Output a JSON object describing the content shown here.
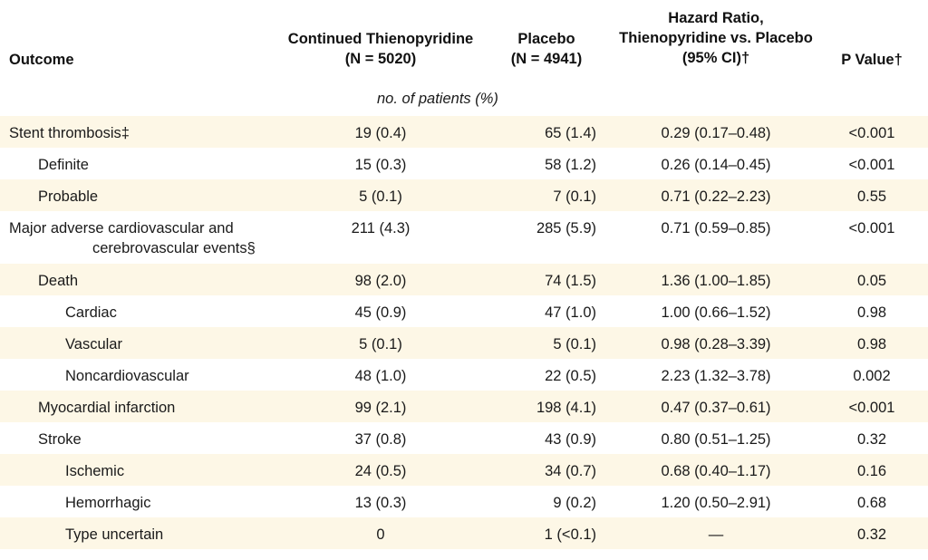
{
  "header": {
    "outcome": "Outcome",
    "continued": "Continued Thienopyridine\n(N = 5020)",
    "placebo": "Placebo\n(N = 4941)",
    "hazard": "Hazard Ratio,\nThienopyridine vs. Placebo\n(95% CI)†",
    "pvalue": "P Value†"
  },
  "unit_label": "no. of patients (%)",
  "rows": [
    {
      "name": "Stent thrombosis‡",
      "cont": "19 (0.4)",
      "plac": "65 (1.4)",
      "hr": "0.29 (0.17–0.48)",
      "p": "<0.001"
    },
    {
      "name": "Definite",
      "cont": "15 (0.3)",
      "plac": "58 (1.2)",
      "hr": "0.26 (0.14–0.45)",
      "p": "<0.001"
    },
    {
      "name": "Probable",
      "cont": "5 (0.1)",
      "plac": "7 (0.1)",
      "hr": "0.71 (0.22–2.23)",
      "p": "0.55"
    },
    {
      "name": "Major adverse cardiovascular and",
      "name2": "cerebrovascular events§",
      "cont": "211 (4.3)",
      "plac": "285 (5.9)",
      "hr": "0.71 (0.59–0.85)",
      "p": "<0.001"
    },
    {
      "name": "Death",
      "cont": "98 (2.0)",
      "plac": "74 (1.5)",
      "hr": "1.36 (1.00–1.85)",
      "p": "0.05"
    },
    {
      "name": "Cardiac",
      "cont": "45 (0.9)",
      "plac": "47 (1.0)",
      "hr": "1.00 (0.66–1.52)",
      "p": "0.98"
    },
    {
      "name": "Vascular",
      "cont": "5 (0.1)",
      "plac": "5 (0.1)",
      "hr": "0.98 (0.28–3.39)",
      "p": "0.98"
    },
    {
      "name": "Noncardiovascular",
      "cont": "48 (1.0)",
      "plac": "22 (0.5)",
      "hr": "2.23 (1.32–3.78)",
      "p": "0.002"
    },
    {
      "name": "Myocardial infarction",
      "cont": "99 (2.1)",
      "plac": "198 (4.1)",
      "hr": "0.47 (0.37–0.61)",
      "p": "<0.001"
    },
    {
      "name": "Stroke",
      "cont": "37 (0.8)",
      "plac": "43 (0.9)",
      "hr": "0.80 (0.51–1.25)",
      "p": "0.32"
    },
    {
      "name": "Ischemic",
      "cont": "24 (0.5)",
      "plac": "34 (0.7)",
      "hr": "0.68 (0.40–1.17)",
      "p": "0.16"
    },
    {
      "name": "Hemorrhagic",
      "cont": "13 (0.3)",
      "plac": "9 (0.2)",
      "hr": "1.20 (0.50–2.91)",
      "p": "0.68"
    },
    {
      "name": "Type uncertain",
      "cont": "0",
      "plac": "1 (<0.1)",
      "hr": "—",
      "p": "0.32"
    }
  ]
}
